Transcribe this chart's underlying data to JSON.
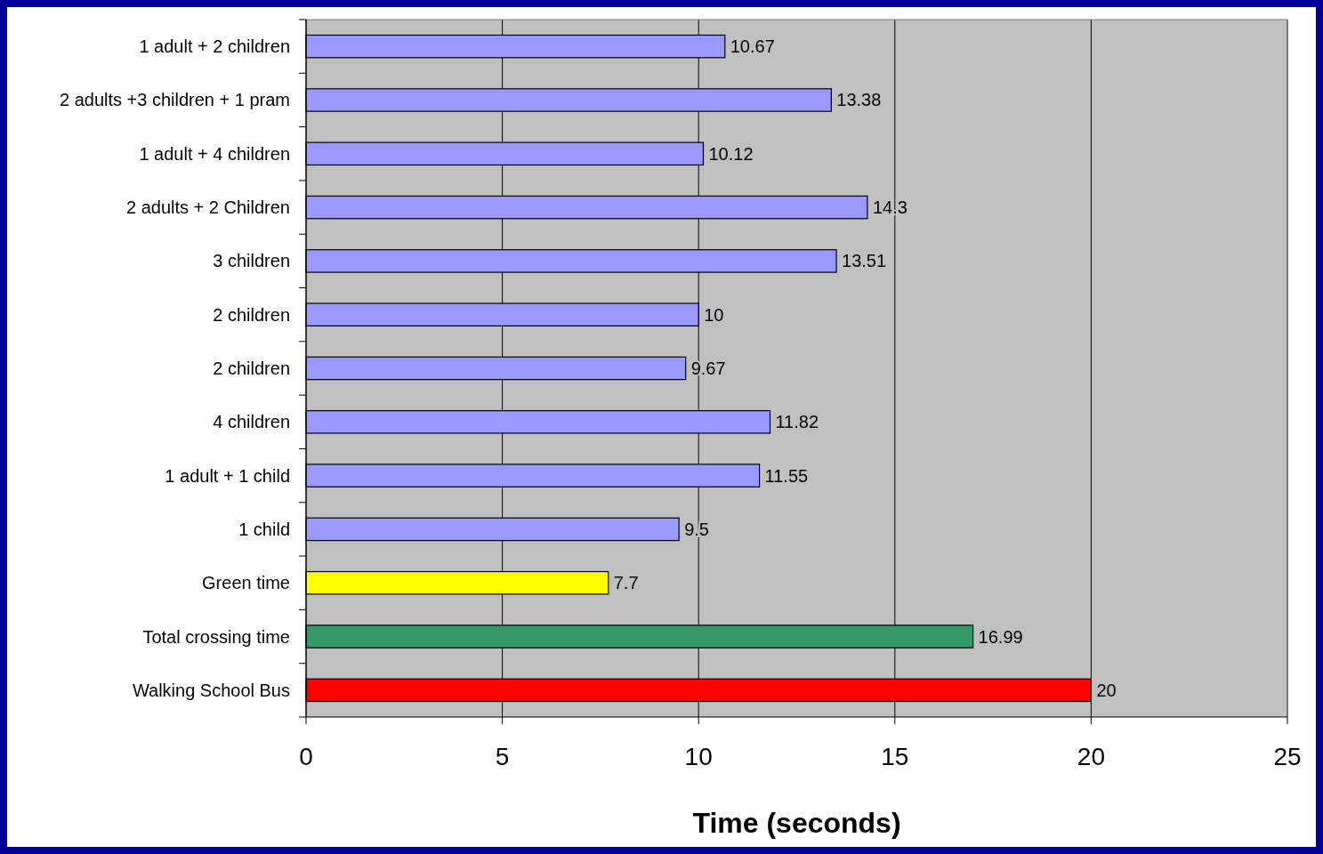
{
  "chart_data": {
    "type": "bar",
    "orientation": "horizontal",
    "xlabel": "Time (seconds)",
    "categories": [
      "1 adult + 2 children",
      "2 adults +3 children + 1 pram",
      "1 adult + 4 children",
      "2 adults + 2 Children",
      "3 children",
      "2 children",
      "2 children",
      "4 children",
      "1 adult + 1 child",
      "1 child",
      "Green time",
      "Total crossing time",
      "Walking School Bus"
    ],
    "values": [
      10.67,
      13.38,
      10.12,
      14.3,
      13.51,
      10,
      9.67,
      11.82,
      11.55,
      9.5,
      7.7,
      16.99,
      20
    ],
    "colors": [
      "#9999ff",
      "#9999ff",
      "#9999ff",
      "#9999ff",
      "#9999ff",
      "#9999ff",
      "#9999ff",
      "#9999ff",
      "#9999ff",
      "#9999ff",
      "#ffff00",
      "#339966",
      "#ff0000"
    ],
    "xlim": [
      0,
      25
    ],
    "xticks": [
      0,
      5,
      10,
      15,
      20,
      25
    ],
    "grid": "x",
    "data_labels": true
  }
}
